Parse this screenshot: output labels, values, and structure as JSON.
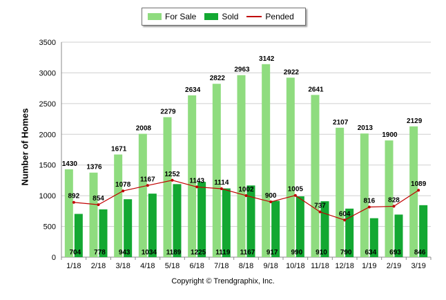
{
  "legend": {
    "for_sale": "For Sale",
    "sold": "Sold",
    "pended": "Pended"
  },
  "colors": {
    "for_sale": "#8fdc7f",
    "sold": "#13a832",
    "pended": "#c00000"
  },
  "footer": "Copyright © Trendgraphix, Inc.",
  "chart_data": {
    "type": "bar",
    "title": "",
    "xlabel": "",
    "ylabel": "Number of Homes",
    "ylim": [
      0,
      3500
    ],
    "yticks": [
      "0",
      "500",
      "1000",
      "1500",
      "2000",
      "2500",
      "3000",
      "3500"
    ],
    "grid": true,
    "legend_position": "top-center",
    "categories": [
      "1/18",
      "2/18",
      "3/18",
      "4/18",
      "5/18",
      "6/18",
      "7/18",
      "8/18",
      "9/18",
      "10/18",
      "11/18",
      "12/18",
      "1/19",
      "2/19",
      "3/19"
    ],
    "series": [
      {
        "name": "For Sale",
        "type": "bar",
        "values": [
          1430,
          1376,
          1671,
          2008,
          2279,
          2634,
          2822,
          2963,
          3142,
          2922,
          2641,
          2107,
          2013,
          1900,
          2129
        ]
      },
      {
        "name": "Sold",
        "type": "bar",
        "values": [
          704,
          778,
          943,
          1034,
          1189,
          1225,
          1119,
          1167,
          917,
          990,
          910,
          790,
          634,
          693,
          846
        ]
      },
      {
        "name": "Pended",
        "type": "line",
        "values": [
          892,
          854,
          1078,
          1167,
          1252,
          1143,
          1114,
          1002,
          900,
          1005,
          737,
          604,
          816,
          828,
          1089
        ]
      }
    ]
  }
}
